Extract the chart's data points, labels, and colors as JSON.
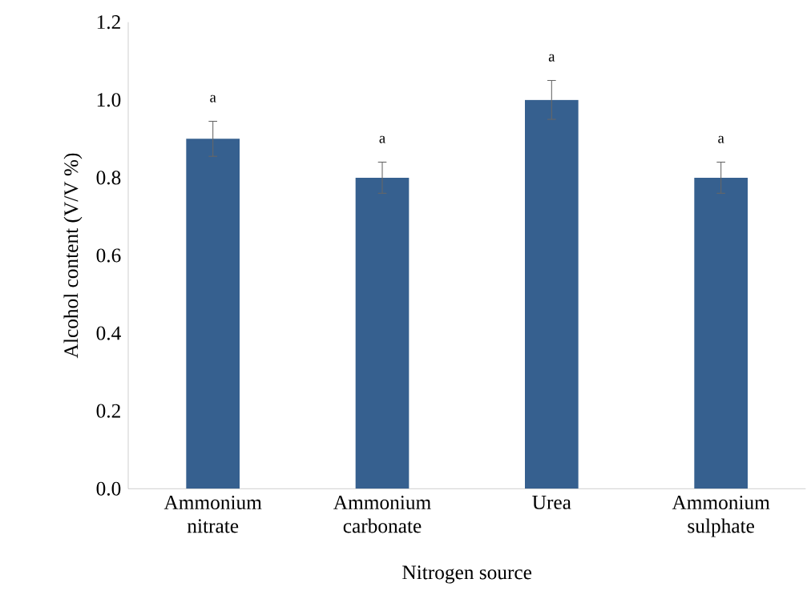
{
  "chart_data": {
    "type": "bar",
    "xlabel": "Nitrogen source",
    "ylabel": "Alcohol content (V/V %)",
    "categories": [
      "Ammonium nitrate",
      "Ammonium carbonate",
      "Urea",
      "Ammonium sulphate"
    ],
    "values": [
      0.9,
      0.8,
      1.0,
      0.8
    ],
    "errors": [
      0.045,
      0.04,
      0.05,
      0.04
    ],
    "color": "#36608f",
    "ylim": [
      0,
      1.2
    ],
    "yticks": [
      {
        "value": 0,
        "label": "0.0"
      },
      {
        "value": 0.2,
        "label": "0.2"
      },
      {
        "value": 0.4,
        "label": "0.4"
      },
      {
        "value": 0.6,
        "label": "0.6"
      },
      {
        "value": 0.8,
        "label": "0.8"
      },
      {
        "value": 1.0,
        "label": "1.0"
      },
      {
        "value": 1.2,
        "label": "1.2"
      }
    ],
    "annotations": [
      "a",
      "a",
      "a",
      "a"
    ]
  }
}
